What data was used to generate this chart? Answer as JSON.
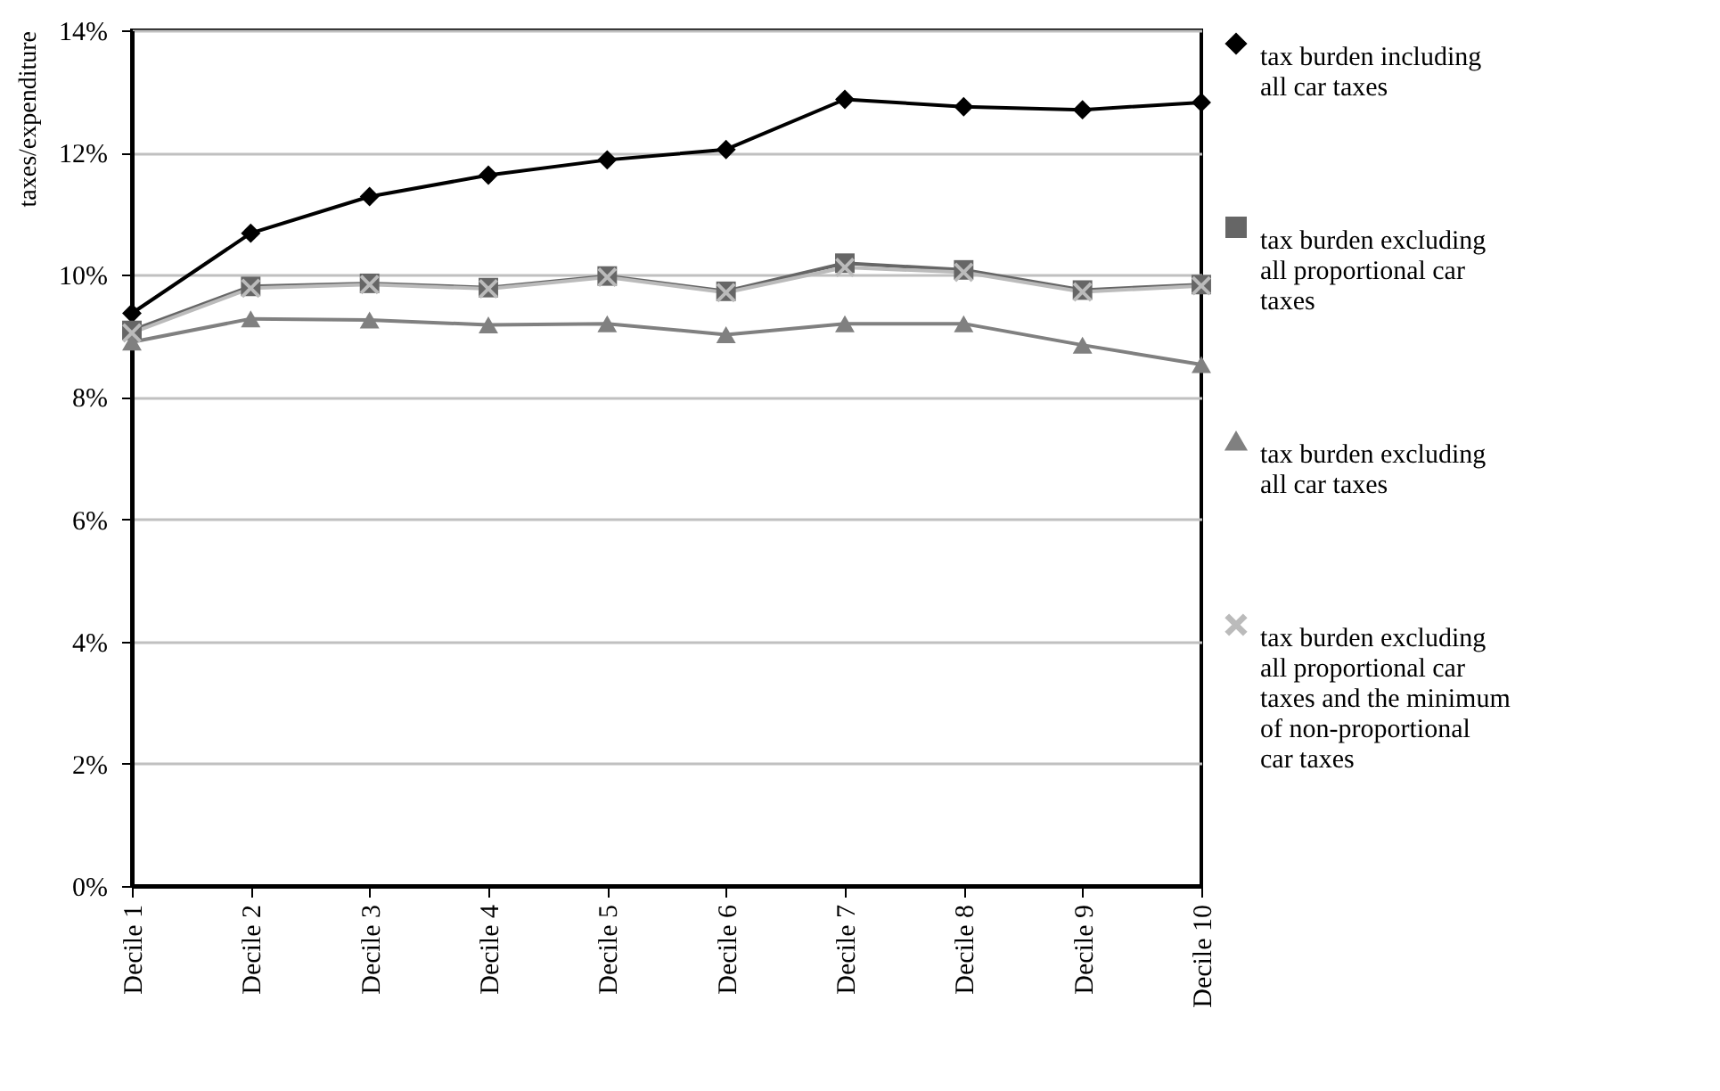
{
  "chart_data": {
    "type": "line",
    "ylabel": "taxes/expenditure",
    "categories": [
      "Decile 1",
      "Decile 2",
      "Decile 3",
      "Decile 4",
      "Decile 5",
      "Decile 6",
      "Decile 7",
      "Decile 8",
      "Decile 9",
      "Decile 10"
    ],
    "series": [
      {
        "name": "tax burden including all car taxes",
        "color": "#000000",
        "marker": "diamond",
        "values": [
          9.37,
          10.68,
          11.28,
          11.63,
          11.88,
          12.05,
          12.87,
          12.75,
          12.7,
          12.82
        ]
      },
      {
        "name": "tax burden excluding all proportional car taxes",
        "color": "#666666",
        "marker": "square",
        "values": [
          9.09,
          9.81,
          9.86,
          9.79,
          9.98,
          9.73,
          10.19,
          10.08,
          9.75,
          9.84
        ]
      },
      {
        "name": "tax burden excluding all car taxes",
        "color": "#808080",
        "marker": "triangle",
        "values": [
          8.9,
          9.28,
          9.26,
          9.18,
          9.2,
          9.02,
          9.2,
          9.2,
          8.85,
          8.53
        ]
      },
      {
        "name": "tax burden excluding all proportional car taxes and the minimum of non-proportional car taxes",
        "color": "#bbbbbb",
        "marker": "cross",
        "values": [
          9.05,
          9.78,
          9.84,
          9.77,
          9.96,
          9.71,
          10.12,
          10.04,
          9.72,
          9.82
        ]
      }
    ],
    "ylim": [
      0,
      14
    ],
    "yticks": [
      {
        "value": 0,
        "label": "0%"
      },
      {
        "value": 2,
        "label": "2%"
      },
      {
        "value": 4,
        "label": "4%"
      },
      {
        "value": 6,
        "label": "6%"
      },
      {
        "value": 8,
        "label": "8%"
      },
      {
        "value": 10,
        "label": "10%"
      },
      {
        "value": 12,
        "label": "12%"
      },
      {
        "value": 14,
        "label": "14%"
      }
    ],
    "grid": "y",
    "legend": "right",
    "line_style": "solid"
  }
}
